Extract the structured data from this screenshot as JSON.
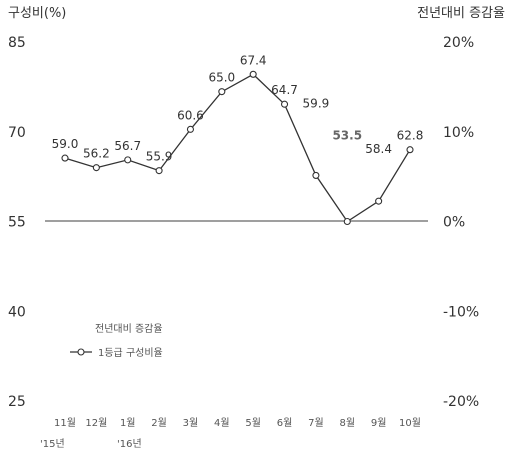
{
  "chart_data": {
    "type": "line",
    "left_axis_title": "구성비(%)",
    "right_axis_title": "전년대비 증감율",
    "left_ticks": [
      "85",
      "70",
      "55",
      "40",
      "25"
    ],
    "right_ticks": [
      "20%",
      "10%",
      "0%",
      "-10%",
      "-20%"
    ],
    "ylim_left": [
      25,
      85
    ],
    "categories": [
      "11월",
      "12월",
      "1월",
      "2월",
      "3월",
      "4월",
      "5월",
      "6월",
      "7월",
      "8월",
      "9월",
      "10월"
    ],
    "year_labels": [
      "'15년",
      "'16년"
    ],
    "series": [
      {
        "name": "1등급 구성비율",
        "values": [
          59.0,
          56.2,
          56.7,
          55.9,
          60.6,
          65.0,
          67.4,
          64.7,
          59.9,
          53.5,
          58.4,
          62.8
        ],
        "value_labels": [
          "59.0",
          "56.2",
          "56.7",
          "55.9",
          "60.6",
          "65.0",
          "67.4",
          "64.7",
          "59.9",
          "53.5",
          "58.4",
          "62.8"
        ]
      }
    ],
    "plotted_y": [
      65.6,
      64.0,
      65.3,
      63.5,
      70.4,
      76.7,
      79.6,
      74.6,
      62.7,
      55.0,
      58.4,
      67.0
    ],
    "legend": {
      "title": "전년대비 증감율",
      "entry": "1등급 구성비율"
    },
    "highlight_index": 9
  }
}
